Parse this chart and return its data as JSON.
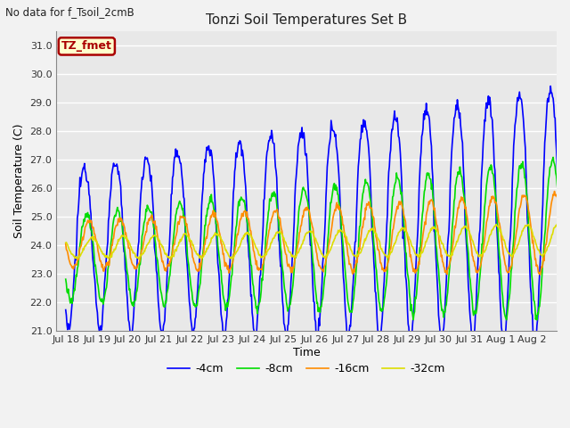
{
  "title": "Tonzi Soil Temperatures Set B",
  "subtitle": "No data for f_Tsoil_2cmB",
  "xlabel": "Time",
  "ylabel": "Soil Temperature (C)",
  "ylim": [
    21.0,
    31.5
  ],
  "yticks": [
    21.0,
    22.0,
    23.0,
    24.0,
    25.0,
    26.0,
    27.0,
    28.0,
    29.0,
    30.0,
    31.0
  ],
  "xtick_labels": [
    "Jul 18",
    "Jul 19",
    "Jul 20",
    "Jul 21",
    "Jul 22",
    "Jul 23",
    "Jul 24",
    "Jul 25",
    "Jul 26",
    "Jul 27",
    "Jul 28",
    "Jul 29",
    "Jul 30",
    "Jul 31",
    "Aug 1",
    "Aug 2"
  ],
  "legend_labels": [
    "-4cm",
    "-8cm",
    "-16cm",
    "-32cm"
  ],
  "legend_colors": [
    "#0000FF",
    "#00DD00",
    "#FF8C00",
    "#DDDD00"
  ],
  "box_label": "TZ_fmet",
  "box_facecolor": "#FFFFCC",
  "box_edgecolor": "#AA0000",
  "box_textcolor": "#AA0000",
  "fig_facecolor": "#F2F2F2",
  "plot_bg_color": "#E8E8E8",
  "line_width": 1.2,
  "n_days": 16,
  "pts_per_day": 48
}
